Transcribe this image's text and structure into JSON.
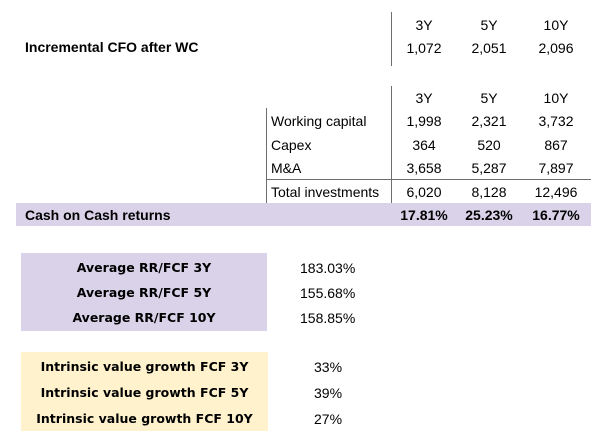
{
  "columns": [
    "3Y",
    "5Y",
    "10Y"
  ],
  "cfo": {
    "label": "Incremental CFO after WC",
    "values": [
      "1,072",
      "2,051",
      "2,096"
    ]
  },
  "investments": {
    "rows": [
      {
        "label": "Working capital",
        "values": [
          "1,998",
          "2,321",
          "3,732"
        ]
      },
      {
        "label": "Capex",
        "values": [
          "364",
          "520",
          "867"
        ]
      },
      {
        "label": "M&A",
        "values": [
          "3,658",
          "5,287",
          "7,897"
        ]
      }
    ],
    "total": {
      "label": "Total investments",
      "values": [
        "6,020",
        "8,128",
        "12,496"
      ]
    }
  },
  "cash_on_cash": {
    "label": "Cash on Cash returns",
    "values": [
      "17.81%",
      "25.23%",
      "16.77%"
    ]
  },
  "average_rr": [
    {
      "label": "Average RR/FCF 3Y",
      "value": "183.03%"
    },
    {
      "label": "Average RR/FCF 5Y",
      "value": "155.68%"
    },
    {
      "label": "Average RR/FCF 10Y",
      "value": "158.85%"
    }
  ],
  "intrinsic_growth": [
    {
      "label": "Intrinsic value growth FCF 3Y",
      "value": "33%"
    },
    {
      "label": "Intrinsic value growth FCF 5Y",
      "value": "39%"
    },
    {
      "label": "Intrinsic value growth FCF 10Y",
      "value": "27%"
    }
  ],
  "colors": {
    "lavender": "#d9d2e9",
    "cream": "#fff2cc",
    "rule": "#6e6e6e"
  }
}
